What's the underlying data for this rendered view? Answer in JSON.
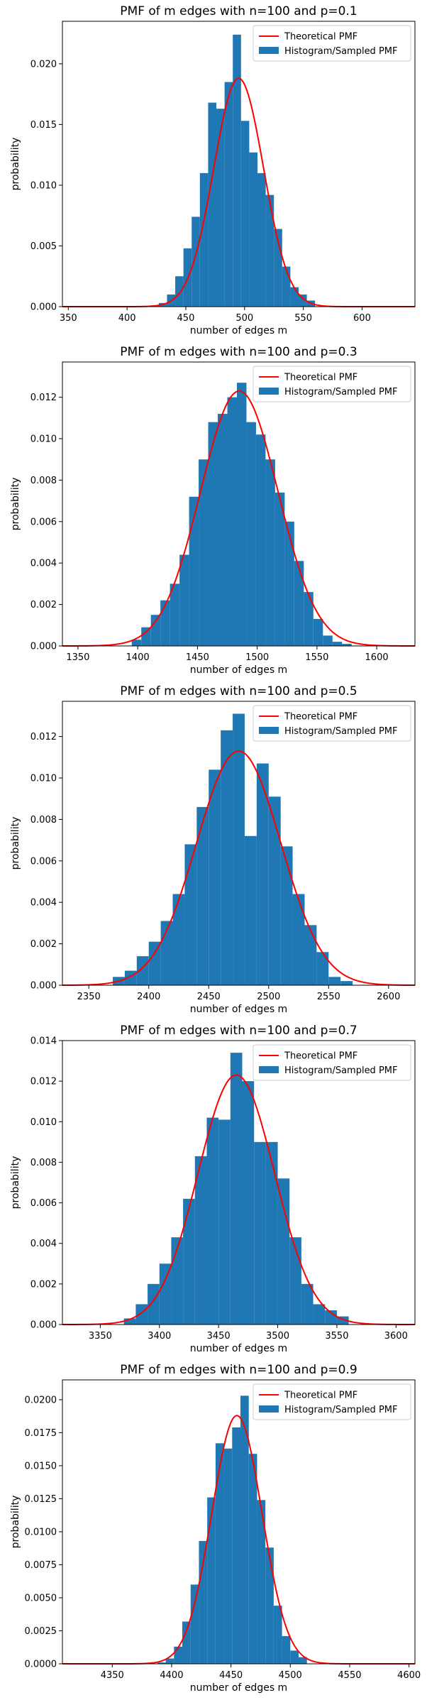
{
  "chart_data": [
    {
      "type": "bar",
      "title": "PMF of m edges with n=100 and p=0.1",
      "xlabel": "number of edges m",
      "ylabel": "probability",
      "xlim": [
        345,
        645
      ],
      "ylim": [
        0,
        0.0235
      ],
      "xticks": [
        350,
        400,
        450,
        500,
        550,
        600
      ],
      "yticks": [
        0.0,
        0.005,
        0.01,
        0.015,
        0.02
      ],
      "ytick_labels": [
        "0.000",
        "0.005",
        "0.010",
        "0.015",
        "0.020"
      ],
      "bin_edges": [
        420,
        427,
        434,
        441,
        448,
        455,
        462,
        469,
        476,
        483,
        490,
        497,
        504,
        511,
        518,
        525,
        532,
        539,
        546,
        553,
        560
      ],
      "histogram": [
        0.0001,
        0.0003,
        0.001,
        0.0025,
        0.0048,
        0.0074,
        0.011,
        0.0168,
        0.0163,
        0.0185,
        0.0224,
        0.0153,
        0.0127,
        0.011,
        0.0092,
        0.0064,
        0.0033,
        0.0016,
        0.001,
        0.0005
      ],
      "pmf": {
        "mean": 495,
        "sd": 21.2,
        "peak": 0.0188
      },
      "legend": [
        "Theoretical PMF",
        "Histogram/Sampled PMF"
      ],
      "legend_position": "top-right",
      "colors": {
        "pmf": "#ff0000",
        "histogram": "#1f77b4"
      }
    },
    {
      "type": "bar",
      "title": "PMF of m edges with n=100 and p=0.3",
      "xlabel": "number of edges m",
      "ylabel": "probability",
      "xlim": [
        1337,
        1632
      ],
      "ylim": [
        0,
        0.0137
      ],
      "xticks": [
        1350,
        1400,
        1450,
        1500,
        1550,
        1600
      ],
      "yticks": [
        0.0,
        0.002,
        0.004,
        0.006,
        0.008,
        0.01,
        0.012
      ],
      "ytick_labels": [
        "0.000",
        "0.002",
        "0.004",
        "0.006",
        "0.008",
        "0.010",
        "0.012"
      ],
      "bin_edges": [
        1395,
        1403,
        1411,
        1419,
        1427,
        1435,
        1443,
        1451,
        1459,
        1467,
        1475,
        1483,
        1491,
        1499,
        1507,
        1515,
        1523,
        1531,
        1539,
        1547,
        1555,
        1563,
        1571,
        1579
      ],
      "histogram": [
        0.0003,
        0.0009,
        0.0015,
        0.0022,
        0.003,
        0.0044,
        0.0072,
        0.009,
        0.0108,
        0.0112,
        0.012,
        0.0127,
        0.0108,
        0.0102,
        0.009,
        0.0074,
        0.006,
        0.0041,
        0.0026,
        0.0013,
        0.0005,
        0.0002,
        0.0001
      ],
      "pmf": {
        "mean": 1485,
        "sd": 32.4,
        "peak": 0.0123
      },
      "legend": [
        "Theoretical PMF",
        "Histogram/Sampled PMF"
      ],
      "legend_position": "top-right",
      "colors": {
        "pmf": "#ff0000",
        "histogram": "#1f77b4"
      }
    },
    {
      "type": "bar",
      "title": "PMF of m edges with n=100 and p=0.5",
      "xlabel": "number of edges m",
      "ylabel": "probability",
      "xlim": [
        2328,
        2622
      ],
      "ylim": [
        0,
        0.0137
      ],
      "xticks": [
        2350,
        2400,
        2450,
        2500,
        2550,
        2600
      ],
      "yticks": [
        0.0,
        0.002,
        0.004,
        0.006,
        0.008,
        0.01,
        0.012
      ],
      "ytick_labels": [
        "0.000",
        "0.002",
        "0.004",
        "0.006",
        "0.008",
        "0.010",
        "0.012"
      ],
      "bin_edges": [
        2370,
        2380,
        2390,
        2400,
        2410,
        2420,
        2430,
        2440,
        2450,
        2460,
        2470,
        2480,
        2490,
        2500,
        2510,
        2520,
        2530,
        2540,
        2550,
        2560,
        2570
      ],
      "histogram": [
        0.0004,
        0.0007,
        0.0014,
        0.0021,
        0.0031,
        0.0044,
        0.0068,
        0.0086,
        0.0104,
        0.0123,
        0.0131,
        0.0072,
        0.0107,
        0.0091,
        0.0067,
        0.0044,
        0.0029,
        0.0016,
        0.0004,
        0.0002
      ],
      "pmf": {
        "mean": 2475,
        "sd": 35.2,
        "peak": 0.0113
      },
      "legend": [
        "Theoretical PMF",
        "Histogram/Sampled PMF"
      ],
      "legend_position": "top-right",
      "colors": {
        "pmf": "#ff0000",
        "histogram": "#1f77b4"
      }
    },
    {
      "type": "bar",
      "title": "PMF of m edges with n=100 and p=0.7",
      "xlabel": "number of edges m",
      "ylabel": "probability",
      "xlim": [
        3318,
        3616
      ],
      "ylim": [
        0,
        0.014
      ],
      "xticks": [
        3350,
        3400,
        3450,
        3500,
        3550,
        3600
      ],
      "yticks": [
        0.0,
        0.002,
        0.004,
        0.006,
        0.008,
        0.01,
        0.012,
        0.014
      ],
      "ytick_labels": [
        "0.000",
        "0.002",
        "0.004",
        "0.006",
        "0.008",
        "0.010",
        "0.012",
        "0.014"
      ],
      "bin_edges": [
        3370,
        3380,
        3390,
        3400,
        3410,
        3420,
        3430,
        3440,
        3450,
        3460,
        3470,
        3480,
        3490,
        3500,
        3510,
        3520,
        3530,
        3540,
        3550,
        3560
      ],
      "histogram": [
        0.0003,
        0.001,
        0.002,
        0.003,
        0.0043,
        0.0062,
        0.0083,
        0.0102,
        0.0101,
        0.0134,
        0.012,
        0.009,
        0.009,
        0.0072,
        0.0043,
        0.002,
        0.001,
        0.0007,
        0.0004
      ],
      "pmf": {
        "mean": 3465,
        "sd": 32.4,
        "peak": 0.0123
      },
      "legend": [
        "Theoretical PMF",
        "Histogram/Sampled PMF"
      ],
      "legend_position": "top-right",
      "colors": {
        "pmf": "#ff0000",
        "histogram": "#1f77b4"
      }
    },
    {
      "type": "bar",
      "title": "PMF of m edges with n=100 and p=0.9",
      "xlabel": "number of edges m",
      "ylabel": "probability",
      "xlim": [
        4308,
        4605
      ],
      "ylim": [
        0,
        0.0215
      ],
      "xticks": [
        4350,
        4400,
        4450,
        4500,
        4550,
        4600
      ],
      "yticks": [
        0.0,
        0.0025,
        0.005,
        0.0075,
        0.01,
        0.0125,
        0.015,
        0.0175,
        0.02
      ],
      "ytick_labels": [
        "0.0000",
        "0.0025",
        "0.0050",
        "0.0075",
        "0.0100",
        "0.0125",
        "0.0150",
        "0.0175",
        "0.0200"
      ],
      "bin_edges": [
        4388,
        4395,
        4402,
        4409,
        4416,
        4423,
        4430,
        4437,
        4444,
        4451,
        4458,
        4465,
        4472,
        4479,
        4486,
        4493,
        4500,
        4507,
        4514
      ],
      "histogram": [
        0.0001,
        0.0004,
        0.0013,
        0.0032,
        0.006,
        0.0093,
        0.0126,
        0.0167,
        0.0163,
        0.0179,
        0.0203,
        0.0159,
        0.0124,
        0.0088,
        0.0044,
        0.0021,
        0.001,
        0.0005
      ],
      "pmf": {
        "mean": 4455,
        "sd": 21.2,
        "peak": 0.0188
      },
      "legend": [
        "Theoretical PMF",
        "Histogram/Sampled PMF"
      ],
      "legend_position": "top-right",
      "colors": {
        "pmf": "#ff0000",
        "histogram": "#1f77b4"
      }
    }
  ]
}
